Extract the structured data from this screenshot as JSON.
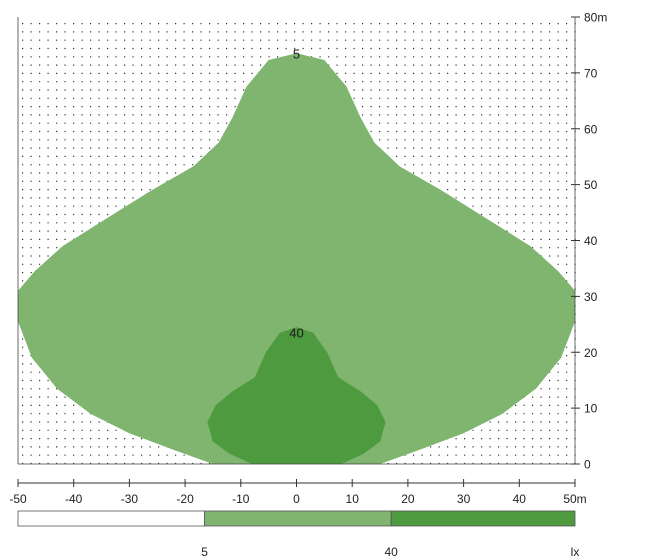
{
  "chart_data": {
    "type": "heatmap",
    "title": "",
    "xlabel": "",
    "ylabel": "",
    "x_unit": "m",
    "y_unit": "m",
    "xlim": [
      -50,
      50
    ],
    "ylim": [
      0,
      80
    ],
    "x_ticks": [
      "-50",
      "-40",
      "-30",
      "-20",
      "-10",
      "0",
      "10",
      "20",
      "30",
      "40",
      "50m"
    ],
    "y_ticks": [
      "0",
      "10",
      "20",
      "30",
      "40",
      "50",
      "60",
      "70",
      "80m"
    ],
    "grid": "dotted",
    "regions": [
      {
        "level": "5",
        "color": "#7fb56f",
        "boundary": [
          [
            0,
            73.5
          ],
          [
            -5,
            72.3
          ],
          [
            -9,
            67.5
          ],
          [
            -11.5,
            62
          ],
          [
            -14,
            57.5
          ],
          [
            -18.5,
            53.3
          ],
          [
            -26,
            49
          ],
          [
            -34,
            44
          ],
          [
            -42,
            39
          ],
          [
            -47,
            34.5
          ],
          [
            -50,
            31
          ],
          [
            -50,
            25.5
          ],
          [
            -47.5,
            19
          ],
          [
            -43,
            13.5
          ],
          [
            -37,
            9
          ],
          [
            -30,
            5.5
          ],
          [
            -22,
            2.5
          ],
          [
            -15,
            0
          ],
          [
            15,
            0
          ],
          [
            22,
            2.5
          ],
          [
            30,
            5.5
          ],
          [
            37,
            9
          ],
          [
            43,
            13.5
          ],
          [
            47.5,
            19
          ],
          [
            50,
            25.5
          ],
          [
            50,
            31
          ],
          [
            47,
            34.5
          ],
          [
            42,
            39
          ],
          [
            34,
            44
          ],
          [
            26,
            49
          ],
          [
            18.5,
            53.3
          ],
          [
            14,
            57.5
          ],
          [
            11.5,
            62
          ],
          [
            9,
            67.5
          ],
          [
            5,
            72.3
          ]
        ]
      },
      {
        "level": "40",
        "color": "#4e9a3f",
        "boundary": [
          [
            0,
            24.5
          ],
          [
            -3,
            23.5
          ],
          [
            -5.5,
            20
          ],
          [
            -7.5,
            15.5
          ],
          [
            -11.5,
            13
          ],
          [
            -14.5,
            10.5
          ],
          [
            -16,
            7.5
          ],
          [
            -15,
            4
          ],
          [
            -12,
            1.8
          ],
          [
            -8,
            0
          ],
          [
            8,
            0
          ],
          [
            12,
            1.8
          ],
          [
            15,
            4
          ],
          [
            16,
            7.5
          ],
          [
            14.5,
            10.5
          ],
          [
            11.5,
            13
          ],
          [
            7.5,
            15.5
          ],
          [
            5.5,
            20
          ],
          [
            3,
            23.5
          ]
        ]
      }
    ],
    "contour_labels": [
      {
        "text": "5",
        "x": 0,
        "y": 73.5
      },
      {
        "text": "40",
        "x": 0,
        "y": 23.5
      }
    ],
    "legend": {
      "placement": "bottom",
      "segments": [
        {
          "from": -50,
          "to": -16.5,
          "color": "#ffffff"
        },
        {
          "from": -16.5,
          "to": 17,
          "color": "#7fb56f"
        },
        {
          "from": 17,
          "to": 50,
          "color": "#4e9a3f"
        }
      ],
      "labels": [
        {
          "text": "5",
          "x": -16.5
        },
        {
          "text": "40",
          "x": 17
        }
      ],
      "unit": "lx"
    }
  }
}
